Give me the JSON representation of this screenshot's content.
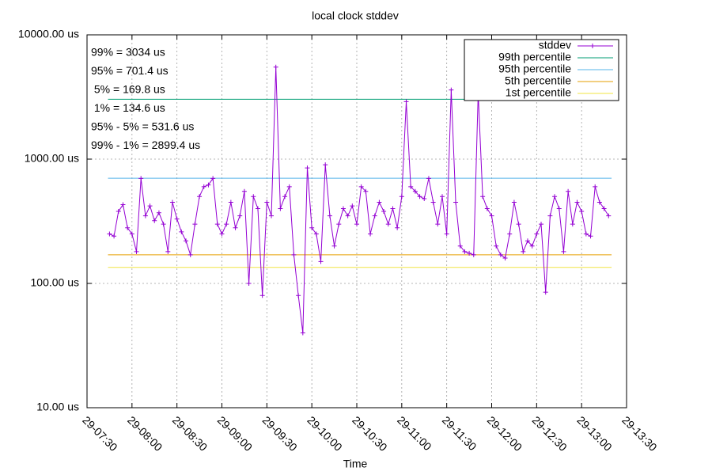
{
  "chart_data": {
    "type": "line",
    "title": "local clock stddev",
    "xlabel": "Time",
    "log_y": true,
    "grid": true,
    "legend": "top-right",
    "xlim": [
      "29-07:30",
      "29-13:30"
    ],
    "xticks": [
      "29-07:30",
      "29-08:00",
      "29-08:30",
      "29-09:00",
      "29-09:30",
      "29-10:00",
      "29-10:30",
      "29-11:00",
      "29-11:30",
      "29-12:00",
      "29-12:30",
      "29-13:00",
      "29-13:30"
    ],
    "ylim": [
      10,
      10000
    ],
    "yticks": [
      {
        "value": 10,
        "label": "10.00 us"
      },
      {
        "value": 100,
        "label": "100.00 us"
      },
      {
        "value": 1000,
        "label": "1000.00 us"
      },
      {
        "value": 10000,
        "label": "10000.00 us"
      }
    ],
    "annotations": [
      "99% = 3034 us",
      "95% = 701.4 us",
      " 5% = 169.8 us",
      " 1% = 134.6 us",
      "95% - 5% = 531.6 us",
      "99% - 1% = 2899.4 us"
    ],
    "series": [
      {
        "name": "stddev",
        "color": "#9400d3",
        "x": [
          "29-07:45",
          "29-07:48",
          "29-07:51",
          "29-07:54",
          "29-07:57",
          "29-08:00",
          "29-08:03",
          "29-08:06",
          "29-08:09",
          "29-08:12",
          "29-08:15",
          "29-08:18",
          "29-08:21",
          "29-08:24",
          "29-08:27",
          "29-08:30",
          "29-08:33",
          "29-08:36",
          "29-08:39",
          "29-08:42",
          "29-08:45",
          "29-08:48",
          "29-08:51",
          "29-08:54",
          "29-08:57",
          "29-09:00",
          "29-09:03",
          "29-09:06",
          "29-09:09",
          "29-09:12",
          "29-09:15",
          "29-09:18",
          "29-09:21",
          "29-09:24",
          "29-09:27",
          "29-09:30",
          "29-09:33",
          "29-09:36",
          "29-09:39",
          "29-09:42",
          "29-09:45",
          "29-09:48",
          "29-09:51",
          "29-09:54",
          "29-09:57",
          "29-10:00",
          "29-10:03",
          "29-10:06",
          "29-10:09",
          "29-10:12",
          "29-10:15",
          "29-10:18",
          "29-10:21",
          "29-10:24",
          "29-10:27",
          "29-10:30",
          "29-10:33",
          "29-10:36",
          "29-10:39",
          "29-10:42",
          "29-10:45",
          "29-10:48",
          "29-10:51",
          "29-10:54",
          "29-10:57",
          "29-11:00",
          "29-11:03",
          "29-11:06",
          "29-11:09",
          "29-11:12",
          "29-11:15",
          "29-11:18",
          "29-11:21",
          "29-11:24",
          "29-11:27",
          "29-11:30",
          "29-11:33",
          "29-11:36",
          "29-11:39",
          "29-11:42",
          "29-11:45",
          "29-11:48",
          "29-11:51",
          "29-11:54",
          "29-11:57",
          "29-12:00",
          "29-12:03",
          "29-12:06",
          "29-12:09",
          "29-12:12",
          "29-12:15",
          "29-12:18",
          "29-12:21",
          "29-12:24",
          "29-12:27",
          "29-12:30",
          "29-12:33",
          "29-12:36",
          "29-12:39",
          "29-12:42",
          "29-12:45",
          "29-12:48",
          "29-12:51",
          "29-12:54",
          "29-12:57",
          "29-13:00",
          "29-13:03",
          "29-13:06",
          "29-13:09",
          "29-13:12",
          "29-13:15",
          "29-13:18"
        ],
        "values": [
          250,
          240,
          380,
          430,
          280,
          250,
          180,
          700,
          350,
          420,
          320,
          370,
          300,
          180,
          450,
          330,
          260,
          220,
          170,
          300,
          500,
          600,
          620,
          700,
          300,
          250,
          300,
          450,
          280,
          350,
          550,
          100,
          500,
          400,
          80,
          450,
          350,
          5500,
          400,
          500,
          600,
          170,
          80,
          40,
          850,
          280,
          250,
          150,
          900,
          350,
          200,
          300,
          400,
          350,
          420,
          300,
          600,
          550,
          250,
          350,
          450,
          380,
          300,
          400,
          280,
          500,
          2900,
          600,
          550,
          500,
          480,
          700,
          450,
          300,
          500,
          250,
          3600,
          450,
          200,
          180,
          175,
          170,
          3400,
          500,
          400,
          350,
          200,
          170,
          160,
          250,
          450,
          300,
          180,
          220,
          200,
          250,
          300,
          85,
          350,
          500,
          400,
          180,
          550,
          300,
          450,
          380,
          250,
          240,
          600,
          450,
          400,
          350
        ]
      },
      {
        "name": "99th percentile",
        "color": "#009e73",
        "x": [
          "29-07:44",
          "29-13:20"
        ],
        "values": [
          3034,
          3034
        ]
      },
      {
        "name": "95th percentile",
        "color": "#56b4e9",
        "x": [
          "29-07:44",
          "29-13:20"
        ],
        "values": [
          701.4,
          701.4
        ]
      },
      {
        "name": "5th percentile",
        "color": "#e69f00",
        "x": [
          "29-07:44",
          "29-13:20"
        ],
        "values": [
          169.8,
          169.8
        ]
      },
      {
        "name": "1st percentile",
        "color": "#f0e442",
        "x": [
          "29-07:44",
          "29-13:20"
        ],
        "values": [
          134.6,
          134.6
        ]
      }
    ]
  }
}
